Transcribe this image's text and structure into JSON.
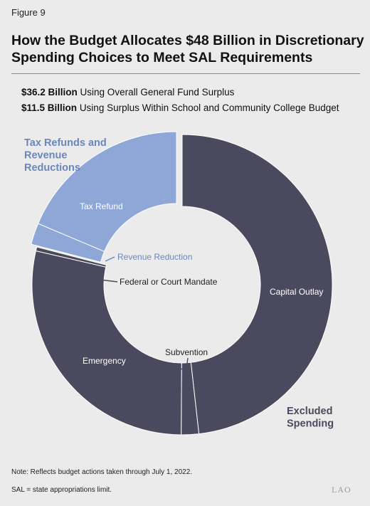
{
  "figure_label": "Figure 9",
  "title": "How the Budget Allocates $48 Billion in Discretionary Spending Choices to Meet SAL Requirements",
  "legend": [
    {
      "amount": "$36.2 Billion",
      "text": "Using Overall General Fund Surplus"
    },
    {
      "amount": "$11.5 Billion",
      "text": "Using Surplus Within School and Community College Budget"
    }
  ],
  "notes": [
    "Note: Reflects budget actions taken through July 1, 2022.",
    "SAL = state appropriations limit."
  ],
  "logo": "LAO",
  "chart_data": {
    "type": "pie",
    "donut": true,
    "unit": "billions of dollars (estimated)",
    "total": 47.7,
    "groups": [
      {
        "name": "Tax Refunds and Revenue Reductions",
        "color": "#8fa7d6",
        "label_color": "#6b86bd",
        "exploded": true
      },
      {
        "name": "Excluded Spending",
        "color": "#4a495d",
        "label_color": "#4a495d",
        "exploded": false
      }
    ],
    "slices": [
      {
        "label": "Capital Outlay",
        "value": 23.0,
        "group": 1
      },
      {
        "label": "Subvention",
        "value": 0.9,
        "group": 1
      },
      {
        "label": "Emergency",
        "value": 13.6,
        "group": 1
      },
      {
        "label": "Federal or Court Mandate",
        "value": 0.2,
        "group": 1
      },
      {
        "label": "Revenue Reduction",
        "value": 1.1,
        "group": 0
      },
      {
        "label": "Tax Refund",
        "value": 8.9,
        "group": 0
      }
    ]
  }
}
